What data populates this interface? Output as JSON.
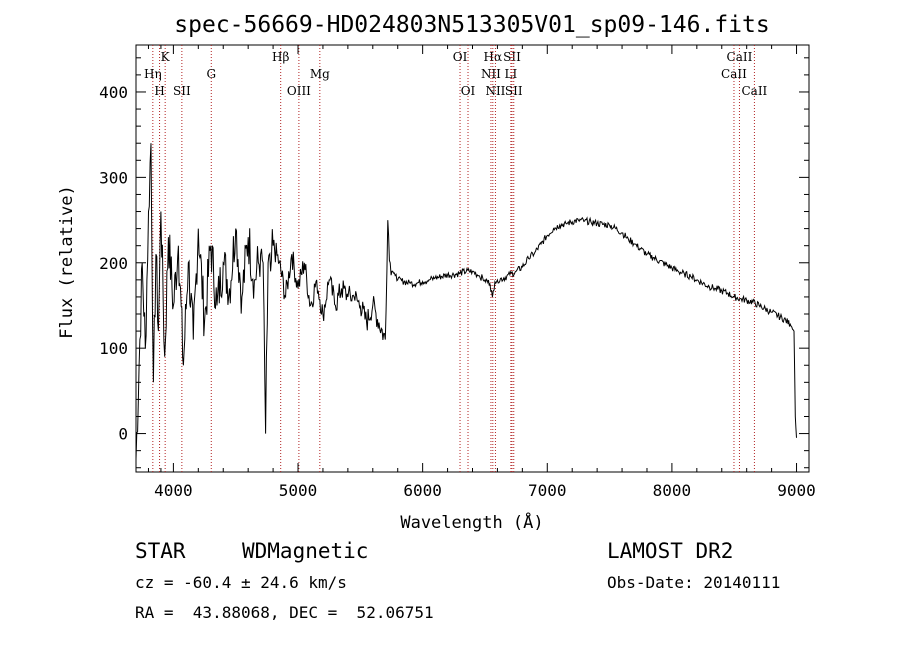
{
  "chart_data": {
    "type": "line",
    "title": "spec-56669-HD024803N513305V01_sp09-146.fits",
    "xlabel": "Wavelength (Å)",
    "ylabel": "Flux (relative)",
    "xlim": [
      3700,
      9100
    ],
    "ylim": [
      -45,
      455
    ],
    "x_ticks": [
      4000,
      5000,
      6000,
      7000,
      8000,
      9000
    ],
    "y_ticks": [
      0,
      100,
      200,
      300,
      400
    ],
    "grid": false,
    "line_color": "#000000",
    "marker_color": "#b22222",
    "series": [
      {
        "x": [
          3700,
          3725,
          3750,
          3775,
          3800,
          3820,
          3840,
          3860,
          3880,
          3900,
          3930,
          3960,
          4000,
          4040,
          4080,
          4120,
          4160,
          4200,
          4250,
          4300,
          4350,
          4400,
          4450,
          4500,
          4550,
          4600,
          4650,
          4700,
          4720,
          4740,
          4760,
          4780,
          4800,
          4850,
          4900,
          4950,
          5000,
          5050,
          5100,
          5150,
          5200,
          5250,
          5300,
          5350,
          5400,
          5450,
          5500,
          5550,
          5600,
          5650,
          5700,
          5720,
          5740,
          5760,
          5780,
          5800,
          5850,
          5900,
          5950,
          6000,
          6050,
          6100,
          6150,
          6200,
          6250,
          6300,
          6350,
          6400,
          6450,
          6500,
          6540,
          6560,
          6580,
          6600,
          6650,
          6700,
          6750,
          6800,
          6850,
          6900,
          6950,
          7000,
          7050,
          7100,
          7150,
          7200,
          7250,
          7300,
          7350,
          7400,
          7450,
          7500,
          7550,
          7600,
          7650,
          7700,
          7750,
          7800,
          7850,
          7900,
          7950,
          8000,
          8050,
          8100,
          8150,
          8200,
          8250,
          8300,
          8350,
          8400,
          8450,
          8500,
          8550,
          8600,
          8650,
          8700,
          8750,
          8800,
          8850,
          8900,
          8950,
          8980,
          8990,
          9000
        ],
        "values": [
          -30,
          80,
          200,
          100,
          260,
          340,
          60,
          210,
          120,
          260,
          90,
          230,
          150,
          220,
          80,
          200,
          110,
          240,
          130,
          220,
          150,
          200,
          170,
          240,
          160,
          230,
          180,
          210,
          200,
          0,
          200,
          190,
          220,
          200,
          160,
          210,
          170,
          200,
          150,
          180,
          140,
          180,
          150,
          170,
          160,
          160,
          150,
          130,
          150,
          130,
          110,
          250,
          200,
          190,
          185,
          180,
          178,
          176,
          176,
          178,
          180,
          182,
          184,
          186,
          186,
          188,
          190,
          190,
          185,
          180,
          176,
          160,
          178,
          180,
          182,
          186,
          190,
          195,
          205,
          212,
          222,
          232,
          240,
          244,
          246,
          248,
          250,
          249,
          248,
          246,
          245,
          244,
          240,
          235,
          228,
          222,
          216,
          210,
          206,
          202,
          198,
          194,
          190,
          187,
          184,
          180,
          176,
          172,
          170,
          167,
          164,
          160,
          158,
          156,
          154,
          150,
          146,
          142,
          138,
          134,
          128,
          120,
          20,
          -5
        ]
      }
    ],
    "line_markers": [
      {
        "label": "Hη",
        "x": 3835,
        "row": 2
      },
      {
        "label": "H",
        "x": 3889,
        "row": 3
      },
      {
        "label": "K",
        "x": 3934,
        "row": 1
      },
      {
        "label": "SII",
        "x": 4068,
        "row": 3
      },
      {
        "label": "G",
        "x": 4304,
        "row": 2
      },
      {
        "label": "Hβ",
        "x": 4861,
        "row": 1
      },
      {
        "label": "OIII",
        "x": 5007,
        "row": 3
      },
      {
        "label": "Mg",
        "x": 5175,
        "row": 2
      },
      {
        "label": "OI",
        "x": 6300,
        "row": 1
      },
      {
        "label": "OI",
        "x": 6364,
        "row": 3
      },
      {
        "label": "Hα",
        "x": 6563,
        "row": 1
      },
      {
        "label": "NII",
        "x": 6548,
        "row": 2
      },
      {
        "label": "NII",
        "x": 6584,
        "row": 3
      },
      {
        "label": "SII",
        "x": 6717,
        "row": 1
      },
      {
        "label": "LI",
        "x": 6708,
        "row": 2
      },
      {
        "label": "SII",
        "x": 6731,
        "row": 3
      },
      {
        "label": "CaII",
        "x": 8542,
        "row": 1
      },
      {
        "label": "CaII",
        "x": 8498,
        "row": 2
      },
      {
        "label": "CaII",
        "x": 8662,
        "row": 3
      }
    ]
  },
  "info": {
    "class_label": "STAR",
    "subclass_label": "WDMagnetic",
    "survey": "LAMOST DR2",
    "cz": "cz = -60.4 ± 24.6 km/s",
    "obs_date": "Obs-Date: 20140111",
    "coords": "RA =  43.88068, DEC =  52.06751"
  }
}
